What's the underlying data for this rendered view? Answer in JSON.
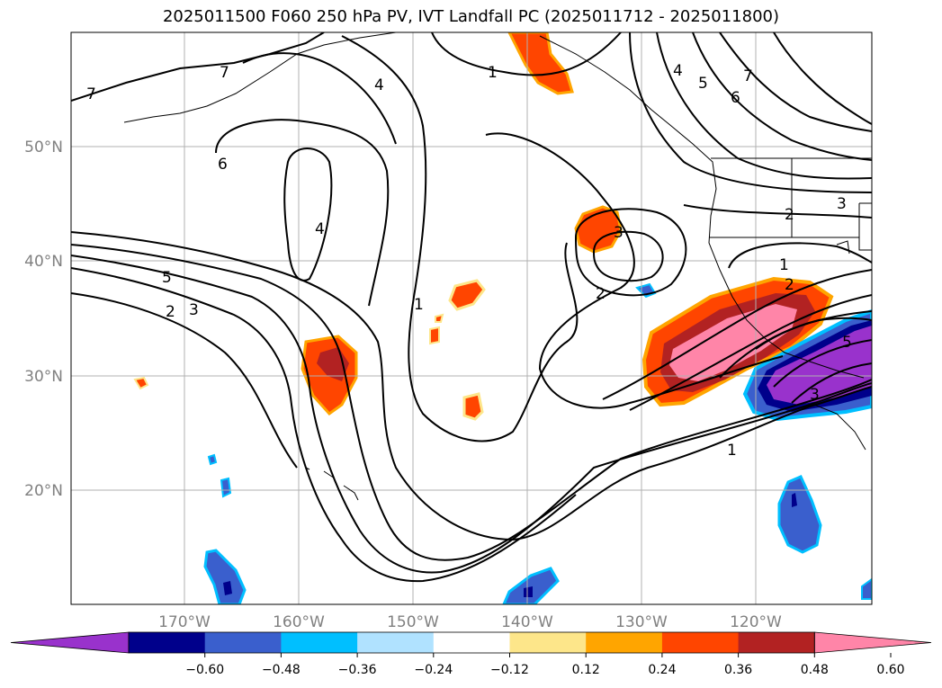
{
  "title": "2025011500 F060 250 hPa PV, IVT Landfall PC (2025011712 - 2025011800)",
  "map": {
    "lat_labels": [
      "50°N",
      "40°N",
      "30°N",
      "20°N"
    ],
    "lon_labels": [
      "170°W",
      "160°W",
      "150°W",
      "140°W",
      "130°W",
      "120°W"
    ],
    "contour_labels": [
      "7",
      "7",
      "6",
      "4",
      "1",
      "4",
      "5",
      "6",
      "7",
      "4",
      "1",
      "3",
      "2",
      "3",
      "2",
      "1",
      "2",
      "5",
      "3",
      "2",
      "5",
      "3",
      "1"
    ]
  },
  "colorbar": {
    "colors": [
      "#9932cc",
      "#00008b",
      "#3a5fcd",
      "#00bfff",
      "#b0e2ff",
      "#ffffff",
      "#fde68a",
      "#ffa500",
      "#ff4500",
      "#b22222",
      "#ff85a8"
    ],
    "ticks": [
      "−0.60",
      "−0.48",
      "−0.36",
      "−0.24",
      "−0.12",
      "0.12",
      "0.24",
      "0.36",
      "0.48",
      "0.60"
    ]
  }
}
